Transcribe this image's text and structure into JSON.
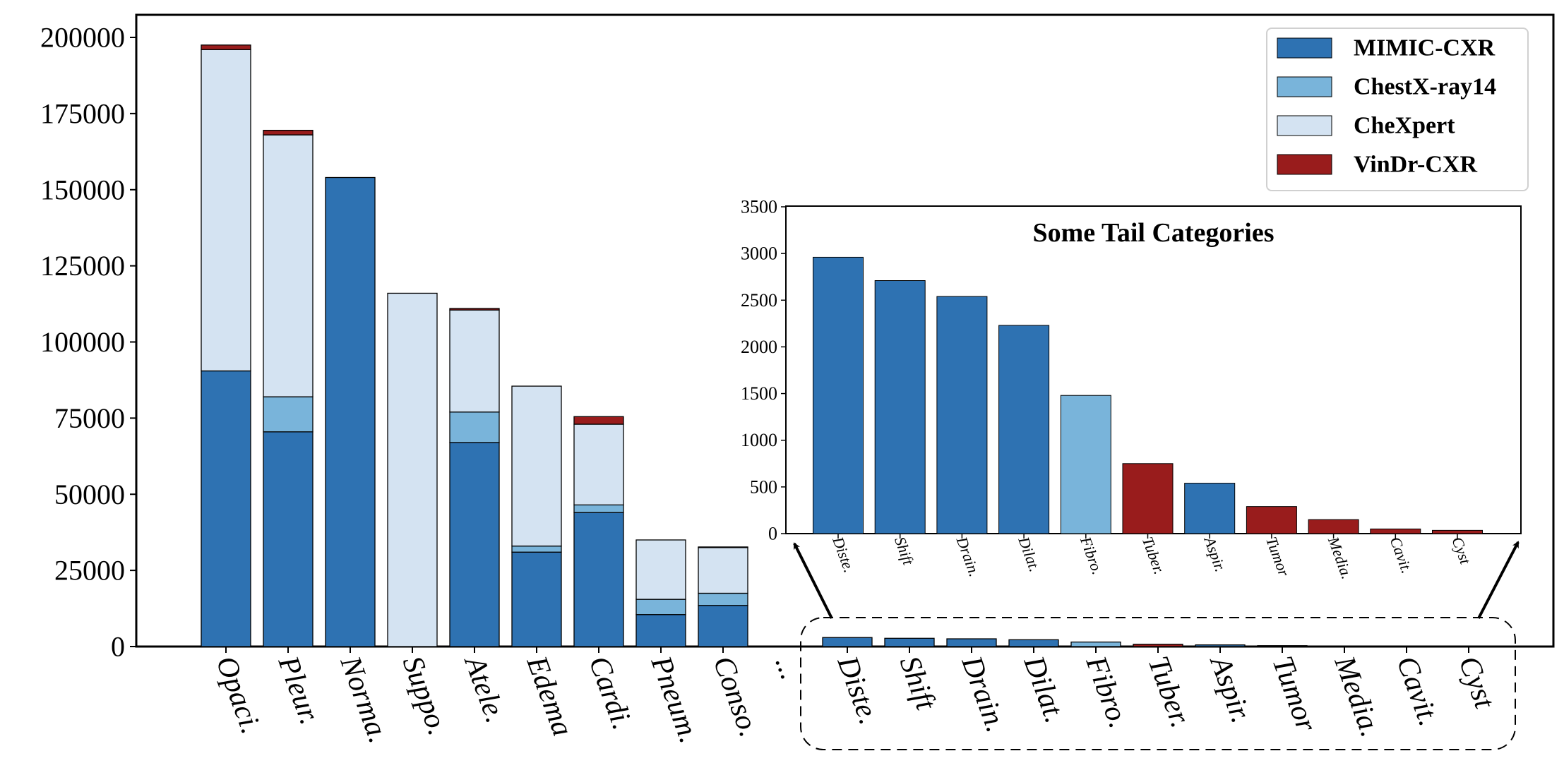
{
  "colors": {
    "mimic": "#2e72b2",
    "chestx": "#79b4da",
    "chexpert": "#d4e3f2",
    "vindr": "#991c1c"
  },
  "chart_data": [
    {
      "type": "bar",
      "stacked": true,
      "title": "",
      "xlabel": "",
      "ylabel": "",
      "ylim": [
        0,
        207000
      ],
      "yticks": [
        0,
        25000,
        50000,
        75000,
        100000,
        125000,
        150000,
        175000,
        200000
      ],
      "legend_position": "top-right",
      "categories": [
        "Opaci.",
        "Pleur.",
        "Norma.",
        "Suppo.",
        "Atele.",
        "Edema",
        "Cardi.",
        "Pneum.",
        "Conso.",
        "...",
        "Diste.",
        "Shift",
        "Drain.",
        "Dilat.",
        "Fibro.",
        "Tuber.",
        "Aspir.",
        "Tumor",
        "Media.",
        "Cavit.",
        "Cyst"
      ],
      "series": [
        {
          "name": "MIMIC-CXR",
          "color_key": "mimic",
          "values": [
            90500,
            70500,
            154000,
            0,
            67000,
            31000,
            44000,
            10500,
            13500,
            null,
            2960,
            2710,
            2540,
            2230,
            0,
            0,
            540,
            0,
            0,
            0,
            0
          ]
        },
        {
          "name": "ChestX-ray14",
          "color_key": "chestx",
          "values": [
            0,
            11500,
            0,
            0,
            10000,
            2000,
            2500,
            5000,
            4000,
            null,
            0,
            0,
            0,
            0,
            1480,
            0,
            0,
            0,
            0,
            0,
            0
          ]
        },
        {
          "name": "CheXpert",
          "color_key": "chexpert",
          "values": [
            105500,
            86000,
            0,
            116000,
            33500,
            52500,
            26500,
            19500,
            15000,
            null,
            0,
            0,
            0,
            0,
            0,
            0,
            0,
            0,
            0,
            0,
            0
          ]
        },
        {
          "name": "VinDr-CXR",
          "color_key": "vindr",
          "values": [
            1500,
            1500,
            0,
            0,
            500,
            0,
            2500,
            0,
            200,
            null,
            0,
            0,
            0,
            0,
            0,
            750,
            0,
            290,
            150,
            50,
            35
          ]
        }
      ]
    },
    {
      "type": "bar",
      "title": "Some Tail Categories",
      "xlabel": "",
      "ylabel": "",
      "ylim": [
        0,
        3500
      ],
      "yticks": [
        0,
        500,
        1000,
        1500,
        2000,
        2500,
        3000,
        3500
      ],
      "categories": [
        "Diste.",
        "Shift",
        "Drain.",
        "Dilat.",
        "Fibro.",
        "Tuber.",
        "Aspir.",
        "Tumor",
        "Media.",
        "Cavit.",
        "Cyst"
      ],
      "values": [
        2960,
        2710,
        2540,
        2230,
        1480,
        750,
        540,
        290,
        150,
        50,
        35
      ],
      "bar_color_keys": [
        "mimic",
        "mimic",
        "mimic",
        "mimic",
        "chestx",
        "vindr",
        "mimic",
        "vindr",
        "vindr",
        "vindr",
        "vindr"
      ]
    }
  ]
}
